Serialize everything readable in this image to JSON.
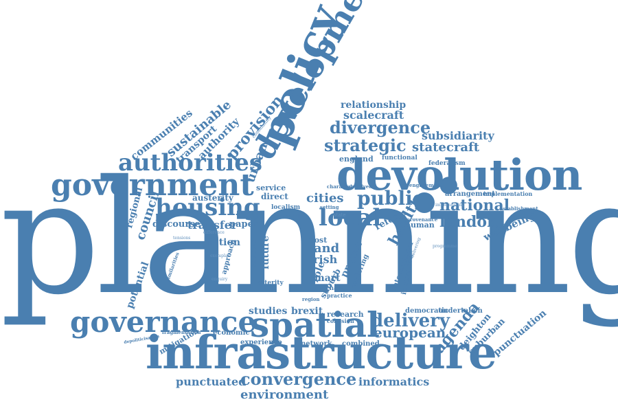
{
  "color": "#4a7fb0",
  "words": {
    "planning": "planning",
    "infrastructure": "infrastructure",
    "devolution": "devolution",
    "government": "government",
    "governance": "governance",
    "spatial": "spatial",
    "policy": "policy",
    "development": "development",
    "housing": "housing",
    "authorities": "authorities",
    "local": "local",
    "strategic": "strategic",
    "divergence": "divergence",
    "convergence": "convergence",
    "public": "public",
    "delivery": "delivery",
    "agenda": "agenda",
    "national": "national",
    "london": "london",
    "environment": "environment",
    "european": "european",
    "scalecraft": "scalecraft",
    "statecraft": "statecraft",
    "subsidiarity": "subsidiarity",
    "relationship": "relationship",
    "sustainable": "sustainable",
    "communities": "communities",
    "transport": "transport",
    "authority": "authority",
    "provision": "provision",
    "urban": "urban",
    "regional": "regional",
    "council": "council",
    "austerity": "austerity",
    "discourse": "discourse",
    "transfer": "transfer",
    "paper": "paper",
    "cities": "cities",
    "land": "land",
    "irish": "irish",
    "smart": "smart",
    "health": "health",
    "wellbeing": "wellbeing",
    "arrangement": "arrangement",
    "implementation": "implementation",
    "reform": "reform",
    "human": "human",
    "potential": "potential",
    "fiction": "fiction",
    "future": "future",
    "project": "project",
    "studies": "studies",
    "brexit": "brexit",
    "research": "research",
    "democratic": "democratic",
    "undertaken": "undertaken",
    "deighton": "deighton",
    "suburban": "suburban",
    "punctuation": "punctuation",
    "punctuated": "punctuated",
    "informatics": "informatics",
    "mitigation": "mitigation",
    "economic": "economic",
    "experience": "experience",
    "network": "network",
    "combined": "combined",
    "fragmentation": "fragmentation",
    "england": "england",
    "functional": "functional",
    "federalism": "federalism",
    "service": "service",
    "direct": "direct",
    "localism": "localism",
    "novel": "novel",
    "post": "post",
    "role": "role",
    "suburb": "suburb",
    "change": "change",
    "alterity": "alterity",
    "practice": "practice",
    "exploring": "exploring",
    "innovation": "innovation",
    "international": "international",
    "establishment": "establishment",
    "policies": "policies",
    "approach": "approach",
    "similarities": "similarities",
    "depoliticisation": "depoliticisation",
    "region": "region",
    "cohesion": "cohesion",
    "character": "character",
    "devolved": "devolved",
    "setting": "setting",
    "state": "state",
    "engagement": "engagement",
    "implementing": "implementing",
    "provenance": "provenance",
    "programme": "programme",
    "delivering": "delivering",
    "exemplar": "exemplar",
    "enquiry": "enquiry",
    "tensions": "tensions",
    "community": "community",
    "difference": "difference"
  }
}
